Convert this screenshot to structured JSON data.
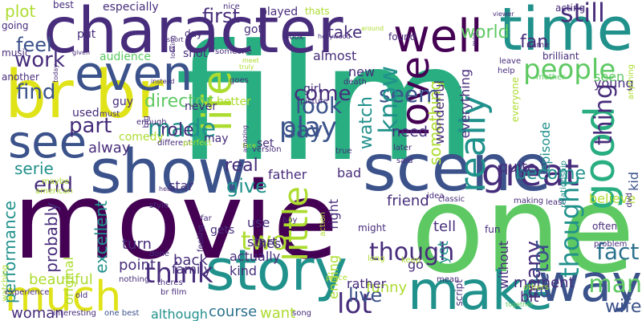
{
  "palette": {
    "purple": "#440154",
    "indigo": "#472d7b",
    "blue": "#3b528b",
    "slate": "#2c728e",
    "teal": "#21918c",
    "green": "#28ae80",
    "lime": "#5ec962",
    "yellowgreen": "#addc30",
    "yellow": "#dfe318"
  },
  "words": [
    {
      "text": "film",
      "color": "green"
    },
    {
      "text": "movie",
      "color": "purple"
    },
    {
      "text": "one",
      "color": "lime"
    },
    {
      "text": "character",
      "color": "indigo"
    },
    {
      "text": "br br",
      "color": "yellow"
    },
    {
      "text": "show",
      "color": "blue"
    },
    {
      "text": "scene",
      "color": "blue"
    },
    {
      "text": "story",
      "color": "teal"
    },
    {
      "text": "make",
      "color": "teal"
    },
    {
      "text": "even",
      "color": "blue"
    },
    {
      "text": "time",
      "color": "teal"
    },
    {
      "text": "well",
      "color": "purple"
    },
    {
      "text": "see",
      "color": "blue"
    },
    {
      "text": "much",
      "color": "yellow"
    },
    {
      "text": "way",
      "color": "blue"
    },
    {
      "text": "good",
      "color": "green"
    },
    {
      "text": "love",
      "color": "purple"
    },
    {
      "text": "life",
      "color": "yellowgreen"
    },
    {
      "text": "great",
      "color": "indigo"
    },
    {
      "text": "people",
      "color": "lime"
    },
    {
      "text": "play",
      "color": "blue"
    },
    {
      "text": "look",
      "color": "blue"
    },
    {
      "text": "think",
      "color": "indigo"
    },
    {
      "text": "made",
      "color": "teal"
    },
    {
      "text": "still",
      "color": "indigo"
    },
    {
      "text": "work",
      "color": "indigo"
    },
    {
      "text": "find",
      "color": "blue"
    },
    {
      "text": "say",
      "color": "blue"
    },
    {
      "text": "end",
      "color": "indigo"
    },
    {
      "text": "give",
      "color": "teal"
    },
    {
      "text": "two",
      "color": "yellowgreen"
    },
    {
      "text": "lot",
      "color": "indigo"
    },
    {
      "text": "man",
      "color": "lime"
    },
    {
      "text": "fact",
      "color": "slate"
    },
    {
      "text": "really",
      "color": "teal"
    },
    {
      "text": "thing",
      "color": "indigo"
    },
    {
      "text": "seem",
      "color": "blue"
    },
    {
      "text": "come",
      "color": "indigo"
    },
    {
      "text": "part",
      "color": "indigo"
    },
    {
      "text": "little",
      "color": "yellowgreen"
    },
    {
      "text": "many",
      "color": "indigo"
    },
    {
      "text": "though",
      "color": "indigo"
    },
    {
      "text": "know",
      "color": "teal"
    },
    {
      "text": "watch",
      "color": "teal"
    },
    {
      "text": "become",
      "color": "teal"
    },
    {
      "text": "actor",
      "color": "blue"
    },
    {
      "text": "thought",
      "color": "teal"
    },
    {
      "text": "live",
      "color": "blue"
    },
    {
      "text": "real",
      "color": "indigo"
    },
    {
      "text": "director",
      "color": "lime"
    },
    {
      "text": "role",
      "color": "indigo"
    },
    {
      "text": "take",
      "color": "indigo"
    },
    {
      "text": "first",
      "color": "indigo"
    },
    {
      "text": "feel",
      "color": "blue"
    },
    {
      "text": "plot",
      "color": "yellowgreen"
    },
    {
      "text": "fan",
      "color": "indigo"
    },
    {
      "text": "world",
      "color": "lime"
    },
    {
      "text": "wife",
      "color": "blue"
    },
    {
      "text": "moment",
      "color": "indigo"
    },
    {
      "text": "something",
      "color": "yellowgreen"
    },
    {
      "text": "alway",
      "color": "indigo"
    },
    {
      "text": "serie",
      "color": "teal"
    },
    {
      "text": "performance",
      "color": "teal"
    },
    {
      "text": "beautiful",
      "color": "yellowgreen"
    },
    {
      "text": "probably",
      "color": "indigo"
    },
    {
      "text": "excellent",
      "color": "teal"
    },
    {
      "text": "point",
      "color": "indigo"
    },
    {
      "text": "turn",
      "color": "indigo"
    },
    {
      "text": "family",
      "color": "indigo"
    },
    {
      "text": "back",
      "color": "indigo"
    },
    {
      "text": "kind",
      "color": "indigo"
    },
    {
      "text": "actually",
      "color": "indigo"
    },
    {
      "text": "start",
      "color": "indigo"
    },
    {
      "text": "use",
      "color": "indigo"
    },
    {
      "text": "course",
      "color": "slate"
    },
    {
      "text": "although",
      "color": "teal"
    },
    {
      "text": "want",
      "color": "yellowgreen"
    },
    {
      "text": "woman",
      "color": "indigo"
    },
    {
      "text": "funny",
      "color": "yellowgreen"
    },
    {
      "text": "rather",
      "color": "indigo"
    },
    {
      "text": "friend",
      "color": "indigo"
    },
    {
      "text": "tell",
      "color": "indigo"
    },
    {
      "text": "go",
      "color": "indigo"
    },
    {
      "text": "yet",
      "color": "teal"
    },
    {
      "text": "bit",
      "color": "indigo"
    },
    {
      "text": "need",
      "color": "indigo"
    },
    {
      "text": "almost",
      "color": "indigo"
    },
    {
      "text": "new",
      "color": "indigo"
    },
    {
      "text": "everything",
      "color": "indigo"
    },
    {
      "text": "wonderful",
      "color": "indigo"
    },
    {
      "text": "quite",
      "color": "indigo"
    },
    {
      "text": "without",
      "color": "indigo"
    },
    {
      "text": "episode",
      "color": "teal"
    },
    {
      "text": "young",
      "color": "indigo"
    },
    {
      "text": "seen",
      "color": "lime"
    },
    {
      "text": "kid",
      "color": "blue"
    },
    {
      "text": "believe",
      "color": "yellowgreen"
    },
    {
      "text": "ending",
      "color": "yellowgreen"
    },
    {
      "text": "right",
      "color": "indigo"
    },
    {
      "text": "bad",
      "color": "indigo"
    },
    {
      "text": "father",
      "color": "indigo"
    },
    {
      "text": "hes",
      "color": "indigo"
    },
    {
      "text": "gets",
      "color": "indigo"
    },
    {
      "text": "set",
      "color": "indigo"
    },
    {
      "text": "may",
      "color": "indigo"
    },
    {
      "text": "never",
      "color": "indigo"
    },
    {
      "text": "star",
      "color": "indigo"
    },
    {
      "text": "better",
      "color": "yellowgreen"
    },
    {
      "text": "guy",
      "color": "indigo"
    },
    {
      "text": "used",
      "color": "indigo"
    },
    {
      "text": "comedy",
      "color": "yellowgreen"
    },
    {
      "text": "girl",
      "color": "indigo"
    },
    {
      "text": "audience",
      "color": "lime"
    },
    {
      "text": "shot",
      "color": "indigo"
    },
    {
      "text": "music",
      "color": "indigo"
    },
    {
      "text": "another",
      "color": "indigo"
    },
    {
      "text": "going",
      "color": "indigo"
    },
    {
      "text": "put",
      "color": "indigo"
    },
    {
      "text": "best",
      "color": "indigo"
    },
    {
      "text": "especially",
      "color": "indigo"
    },
    {
      "text": "played",
      "color": "indigo"
    },
    {
      "text": "thats",
      "color": "yellowgreen"
    },
    {
      "text": "acting",
      "color": "indigo"
    },
    {
      "text": "got",
      "color": "indigo"
    },
    {
      "text": "day",
      "color": "indigo"
    },
    {
      "text": "u",
      "color": "indigo"
    },
    {
      "text": "found",
      "color": "indigo"
    },
    {
      "text": "nice",
      "color": "indigo"
    },
    {
      "text": "original",
      "color": "yellowgreen"
    },
    {
      "text": "maybe",
      "color": "yellowgreen"
    },
    {
      "text": "watching",
      "color": "yellowgreen"
    },
    {
      "text": "american",
      "color": "yellowgreen"
    },
    {
      "text": "experience",
      "color": "indigo"
    },
    {
      "text": "interesting",
      "color": "indigo"
    },
    {
      "text": "one best",
      "color": "blue"
    },
    {
      "text": "nothing",
      "color": "indigo"
    },
    {
      "text": "old",
      "color": "indigo"
    },
    {
      "text": "song",
      "color": "indigo"
    },
    {
      "text": "theres",
      "color": "indigo"
    },
    {
      "text": "br film",
      "color": "indigo"
    },
    {
      "text": "done",
      "color": "indigo"
    },
    {
      "text": "place",
      "color": "yellowgreen"
    },
    {
      "text": "mean",
      "color": "indigo"
    },
    {
      "text": "script",
      "color": "indigo"
    },
    {
      "text": "fun",
      "color": "indigo"
    },
    {
      "text": "long",
      "color": "yellowgreen"
    },
    {
      "text": "might",
      "color": "indigo"
    },
    {
      "text": "keep",
      "color": "yellowgreen"
    },
    {
      "text": "idea",
      "color": "indigo"
    },
    {
      "text": "classic",
      "color": "indigo"
    },
    {
      "text": "making",
      "color": "indigo"
    },
    {
      "text": "least",
      "color": "indigo"
    },
    {
      "text": "often",
      "color": "indigo"
    },
    {
      "text": "others",
      "color": "yellowgreen"
    },
    {
      "text": "together",
      "color": "lime"
    },
    {
      "text": "problem",
      "color": "indigo"
    },
    {
      "text": "relationship",
      "color": "teal"
    },
    {
      "text": "dvd",
      "color": "indigo"
    },
    {
      "text": "mother",
      "color": "lime"
    },
    {
      "text": "brilliant",
      "color": "indigo"
    },
    {
      "text": "help",
      "color": "indigo"
    },
    {
      "text": "leave",
      "color": "indigo"
    },
    {
      "text": "name",
      "color": "indigo"
    },
    {
      "text": "anything",
      "color": "yellowgreen"
    },
    {
      "text": "everyone",
      "color": "yellowgreen"
    },
    {
      "text": "death",
      "color": "indigo"
    },
    {
      "text": "picture",
      "color": "indigo"
    },
    {
      "text": "later",
      "color": "indigo"
    },
    {
      "text": "said",
      "color": "indigo"
    },
    {
      "text": "true",
      "color": "indigo"
    },
    {
      "text": "version",
      "color": "indigo"
    },
    {
      "text": "face",
      "color": "yellowgreen"
    },
    {
      "text": "amazing",
      "color": "indigo"
    },
    {
      "text": "different",
      "color": "indigo"
    },
    {
      "text": "perfect",
      "color": "yellowgreen"
    },
    {
      "text": "boy",
      "color": "indigo"
    },
    {
      "text": "action",
      "color": "yellowgreen"
    },
    {
      "text": "style",
      "color": "indigo"
    },
    {
      "text": "head",
      "color": "indigo"
    },
    {
      "text": "far",
      "color": "indigo"
    },
    {
      "text": "feeling",
      "color": "indigo"
    },
    {
      "text": "enough",
      "color": "indigo"
    },
    {
      "text": "must",
      "color": "indigo"
    },
    {
      "text": "big",
      "color": "indigo"
    },
    {
      "text": "instead",
      "color": "indigo"
    },
    {
      "text": "goes",
      "color": "indigo"
    },
    {
      "text": "someone",
      "color": "indigo"
    },
    {
      "text": "meet",
      "color": "yellowgreen"
    },
    {
      "text": "truly",
      "color": "yellowgreen"
    },
    {
      "text": "book",
      "color": "indigo"
    },
    {
      "text": "hollywood",
      "color": "indigo"
    },
    {
      "text": "around",
      "color": "yellowgreen"
    },
    {
      "text": "viewer",
      "color": "indigo"
    },
    {
      "text": "men",
      "color": "indigo"
    },
    {
      "text": "looking",
      "color": "indigo"
    },
    {
      "text": "short",
      "color": "indigo"
    },
    {
      "text": "given",
      "color": "indigo"
    },
    {
      "text": "today",
      "color": "indigo"
    }
  ]
}
